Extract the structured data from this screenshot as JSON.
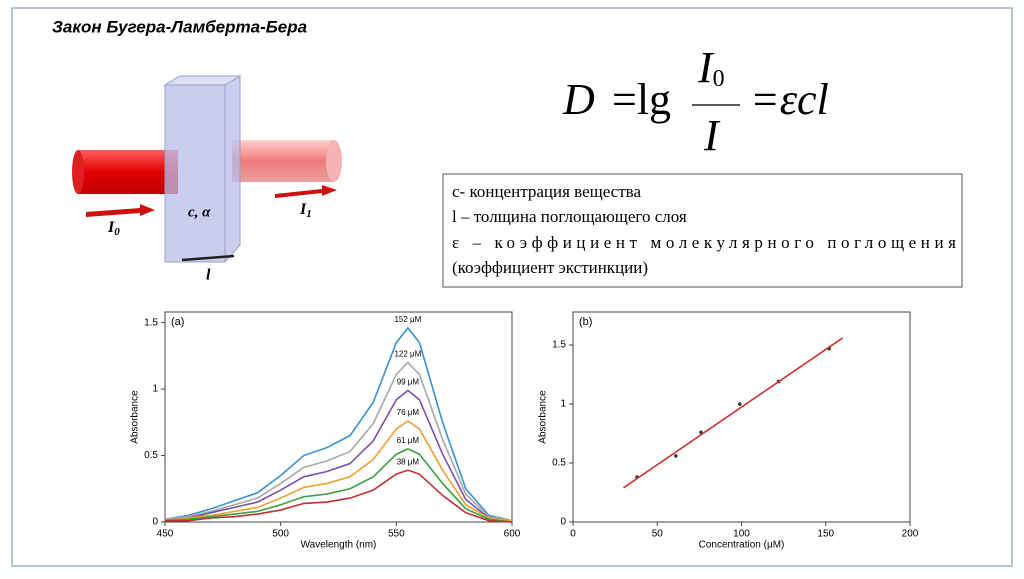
{
  "header": {
    "title": "Закон Бугера-Ламберта-Бера"
  },
  "diagram": {
    "cell_label": "c, α",
    "incident": "I",
    "incident_sub": "0",
    "transmitted": "I",
    "transmitted_sub": "1",
    "length": "l"
  },
  "formula": {
    "lhs": "D",
    "op": "=lg",
    "numerator": "I",
    "numerator_sub": "0",
    "denominator": "I",
    "rhs": "=εcl"
  },
  "legend_box": {
    "lines": [
      "с- концентрация вещества",
      "l – толщина поглощающего слоя",
      "ε – коэффициент молекулярного поглощения",
      "(коэффициент экстинкции)"
    ]
  },
  "chart_data": [
    {
      "type": "line",
      "annotation": "(a)",
      "x_label": "Wavelength (nm)",
      "y_label": "Absorbance",
      "x": [
        450,
        460,
        470,
        480,
        490,
        500,
        510,
        520,
        530,
        540,
        550,
        555,
        560,
        570,
        580,
        590,
        600
      ],
      "xlim": [
        450,
        600
      ],
      "xticks": [
        450,
        500,
        550,
        600
      ],
      "ylim": [
        0,
        1.58
      ],
      "yticks": [
        0,
        0.5,
        1,
        1.5
      ],
      "series": [
        {
          "name": "152 μM",
          "color": "#3a8fd0",
          "values": [
            0.02,
            0.05,
            0.1,
            0.16,
            0.22,
            0.35,
            0.5,
            0.56,
            0.65,
            0.9,
            1.35,
            1.46,
            1.35,
            0.75,
            0.25,
            0.05,
            0.01
          ]
        },
        {
          "name": "122 μM",
          "color": "#a8a8a8",
          "values": [
            0.02,
            0.04,
            0.08,
            0.13,
            0.18,
            0.29,
            0.41,
            0.46,
            0.53,
            0.74,
            1.11,
            1.2,
            1.11,
            0.62,
            0.21,
            0.04,
            0.01
          ]
        },
        {
          "name": "99 μM",
          "color": "#7b4fa8",
          "values": [
            0.01,
            0.03,
            0.07,
            0.11,
            0.15,
            0.24,
            0.34,
            0.38,
            0.44,
            0.61,
            0.92,
            0.99,
            0.92,
            0.51,
            0.17,
            0.03,
            0.01
          ]
        },
        {
          "name": "76 μM",
          "color": "#f0a030",
          "values": [
            0.01,
            0.03,
            0.05,
            0.08,
            0.11,
            0.18,
            0.26,
            0.29,
            0.34,
            0.47,
            0.7,
            0.76,
            0.7,
            0.39,
            0.13,
            0.03,
            0.01
          ]
        },
        {
          "name": "61 μM",
          "color": "#3aa040",
          "values": [
            0.01,
            0.02,
            0.04,
            0.06,
            0.08,
            0.13,
            0.19,
            0.21,
            0.25,
            0.34,
            0.51,
            0.55,
            0.51,
            0.29,
            0.1,
            0.02,
            0
          ]
        },
        {
          "name": "38 μM",
          "color": "#c03030",
          "values": [
            0.01,
            0.01,
            0.03,
            0.04,
            0.06,
            0.09,
            0.14,
            0.15,
            0.18,
            0.24,
            0.36,
            0.39,
            0.36,
            0.2,
            0.07,
            0.01,
            0
          ]
        }
      ]
    },
    {
      "type": "scatter",
      "annotation": "(b)",
      "x_label": "Concentration (μM)",
      "y_label": "Absorbance",
      "xlim": [
        0,
        200
      ],
      "xticks": [
        0,
        50,
        100,
        150,
        200
      ],
      "ylim": [
        0,
        1.78
      ],
      "yticks": [
        0,
        0.5,
        1,
        1.5
      ],
      "series": [
        {
          "mode": "markers",
          "color": "#333333",
          "x": [
            38,
            61,
            76,
            99,
            122,
            152
          ],
          "values": [
            0.38,
            0.56,
            0.76,
            1.0,
            1.19,
            1.47
          ]
        },
        {
          "mode": "line",
          "color": "#d03030",
          "x": [
            30,
            160
          ],
          "values": [
            0.29,
            1.56
          ]
        }
      ]
    }
  ]
}
